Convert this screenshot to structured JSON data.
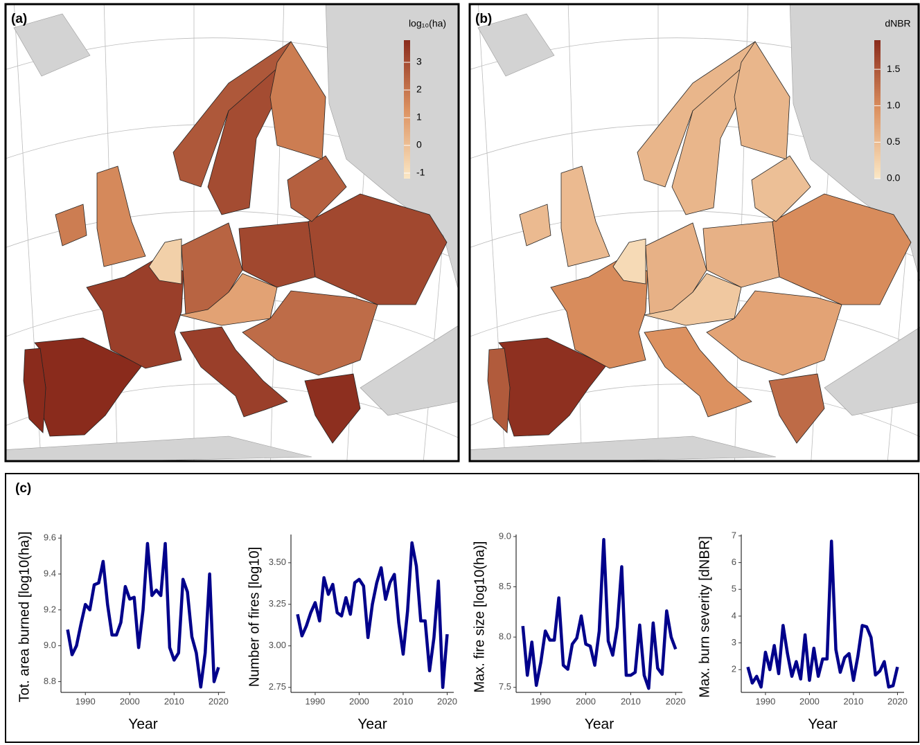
{
  "chart_data": [
    {
      "type": "choropleth",
      "title": "(a)",
      "colorbar_label": "log₁₀(ha)",
      "clim": [
        -1.2,
        3.8
      ],
      "cticks": [
        -1,
        0,
        1,
        2,
        3
      ],
      "values": [
        3.9,
        3.8,
        3.3,
        -0.5,
        2.4,
        3.1,
        0.8,
        3.3,
        2.2,
        3.7,
        3.1,
        2.5,
        1.5,
        1.8,
        2.7,
        3.0,
        1.8
      ]
    },
    {
      "type": "choropleth",
      "title": "(b)",
      "colorbar_label": "dNBR",
      "clim": [
        0,
        1.9
      ],
      "cticks": [
        {
          "value": 0,
          "label": "0.0"
        },
        {
          "value": 0.5,
          "label": "0.5"
        },
        {
          "value": 1,
          "label": "1.0"
        },
        {
          "value": 1.5,
          "label": "1.5"
        }
      ],
      "values": [
        1.85,
        1.45,
        1.0,
        0.15,
        0.6,
        0.6,
        0.35,
        0.95,
        0.75,
        1.3,
        1.0,
        0.45,
        0.5,
        0.5,
        0.55,
        0.55,
        0.55
      ]
    },
    {
      "type": "line",
      "panel": "(c)",
      "y_label": "Tot. area burned [log10(ha)]",
      "x_label": "Year",
      "color": "#00008b",
      "x": [
        1986,
        1987,
        1988,
        1989,
        1990,
        1991,
        1992,
        1993,
        1994,
        1995,
        1996,
        1997,
        1998,
        1999,
        2000,
        2001,
        2002,
        2003,
        2004,
        2005,
        2006,
        2007,
        2008,
        2009,
        2010,
        2011,
        2012,
        2013,
        2014,
        2015,
        2016,
        2017,
        2018,
        2019,
        2020
      ],
      "values": [
        9.09,
        8.95,
        9.0,
        9.12,
        9.23,
        9.2,
        9.34,
        9.35,
        9.47,
        9.23,
        9.06,
        9.06,
        9.13,
        9.33,
        9.26,
        9.27,
        8.99,
        9.2,
        9.57,
        9.28,
        9.31,
        9.28,
        9.57,
        8.99,
        8.92,
        8.96,
        9.37,
        9.3,
        9.05,
        8.96,
        8.77,
        8.96,
        9.4,
        8.8,
        8.88
      ],
      "xlim": [
        1984.5,
        2021.5
      ],
      "xticks": [
        1990,
        2000,
        2010,
        2020
      ],
      "ylim": [
        8.74,
        9.62
      ],
      "yticks": [
        {
          "value": 8.8,
          "label": "8.8"
        },
        {
          "value": 9,
          "label": "9.0"
        },
        {
          "value": 9.2,
          "label": "9.2"
        },
        {
          "value": 9.4,
          "label": "9.4"
        },
        {
          "value": 9.6,
          "label": "9.6"
        }
      ]
    },
    {
      "type": "line",
      "y_label": "Number of fires [log10]",
      "x_label": "Year",
      "color": "#00008b",
      "x": [
        1986,
        1987,
        1988,
        1989,
        1990,
        1991,
        1992,
        1993,
        1994,
        1995,
        1996,
        1997,
        1998,
        1999,
        2000,
        2001,
        2002,
        2003,
        2004,
        2005,
        2006,
        2007,
        2008,
        2009,
        2010,
        2011,
        2012,
        2013,
        2014,
        2015,
        2016,
        2017,
        2018,
        2019,
        2020
      ],
      "values": [
        3.19,
        3.06,
        3.12,
        3.2,
        3.26,
        3.15,
        3.41,
        3.31,
        3.37,
        3.2,
        3.18,
        3.29,
        3.19,
        3.38,
        3.4,
        3.36,
        3.05,
        3.25,
        3.38,
        3.47,
        3.28,
        3.38,
        3.43,
        3.14,
        2.95,
        3.21,
        3.62,
        3.48,
        3.15,
        3.15,
        2.85,
        3.05,
        3.39,
        2.75,
        3.07
      ],
      "xlim": [
        1984.5,
        2021.5
      ],
      "xticks": [
        1990,
        2000,
        2010,
        2020
      ],
      "ylim": [
        2.72,
        3.67
      ],
      "yticks": [
        {
          "value": 2.75,
          "label": "2.75"
        },
        {
          "value": 3,
          "label": "3.00"
        },
        {
          "value": 3.25,
          "label": "3.25"
        },
        {
          "value": 3.5,
          "label": "3.50"
        }
      ]
    },
    {
      "type": "line",
      "y_label": "Max. fire size [log10(ha)]",
      "x_label": "Year",
      "color": "#00008b",
      "x": [
        1986,
        1987,
        1988,
        1989,
        1990,
        1991,
        1992,
        1993,
        1994,
        1995,
        1996,
        1997,
        1998,
        1999,
        2000,
        2001,
        2002,
        2003,
        2004,
        2005,
        2006,
        2007,
        2008,
        2009,
        2010,
        2011,
        2012,
        2013,
        2014,
        2015,
        2016,
        2017,
        2018,
        2019,
        2020
      ],
      "values": [
        8.11,
        7.62,
        7.95,
        7.52,
        7.75,
        8.06,
        7.97,
        7.97,
        8.39,
        7.72,
        7.68,
        7.93,
        7.99,
        8.21,
        7.93,
        7.91,
        7.72,
        8.06,
        8.97,
        7.96,
        7.82,
        8.1,
        8.7,
        7.62,
        7.62,
        7.65,
        8.12,
        7.62,
        7.49,
        8.14,
        7.69,
        7.63,
        8.26,
        8.0,
        7.88
      ],
      "xlim": [
        1984.5,
        2021.5
      ],
      "xticks": [
        1990,
        2000,
        2010,
        2020
      ],
      "ylim": [
        7.45,
        9.02
      ],
      "yticks": [
        {
          "value": 7.5,
          "label": "7.5"
        },
        {
          "value": 8,
          "label": "8.0"
        },
        {
          "value": 8.5,
          "label": "8.5"
        },
        {
          "value": 9,
          "label": "9.0"
        }
      ]
    },
    {
      "type": "line",
      "y_label": "Max. burn severity [dNBR]",
      "x_label": "Year",
      "color": "#00008b",
      "x": [
        1986,
        1987,
        1988,
        1989,
        1990,
        1991,
        1992,
        1993,
        1994,
        1995,
        1996,
        1997,
        1998,
        1999,
        2000,
        2001,
        2002,
        2003,
        2004,
        2005,
        2006,
        2007,
        2008,
        2009,
        2010,
        2011,
        2012,
        2013,
        2014,
        2015,
        2016,
        2017,
        2018,
        2019,
        2020
      ],
      "values": [
        2.1,
        1.5,
        1.75,
        1.35,
        2.65,
        2.0,
        2.9,
        1.85,
        3.65,
        2.6,
        1.75,
        2.3,
        1.65,
        3.3,
        1.6,
        2.8,
        1.75,
        2.4,
        2.4,
        6.8,
        2.75,
        1.9,
        2.45,
        2.6,
        1.6,
        2.5,
        3.65,
        3.6,
        3.2,
        1.8,
        1.95,
        2.3,
        1.35,
        1.4,
        2.1
      ],
      "xlim": [
        1984.5,
        2021.5
      ],
      "xticks": [
        1990,
        2000,
        2010,
        2020
      ],
      "ylim": [
        1.15,
        7.05
      ],
      "yticks": [
        2,
        3,
        4,
        5,
        6,
        7
      ]
    }
  ]
}
